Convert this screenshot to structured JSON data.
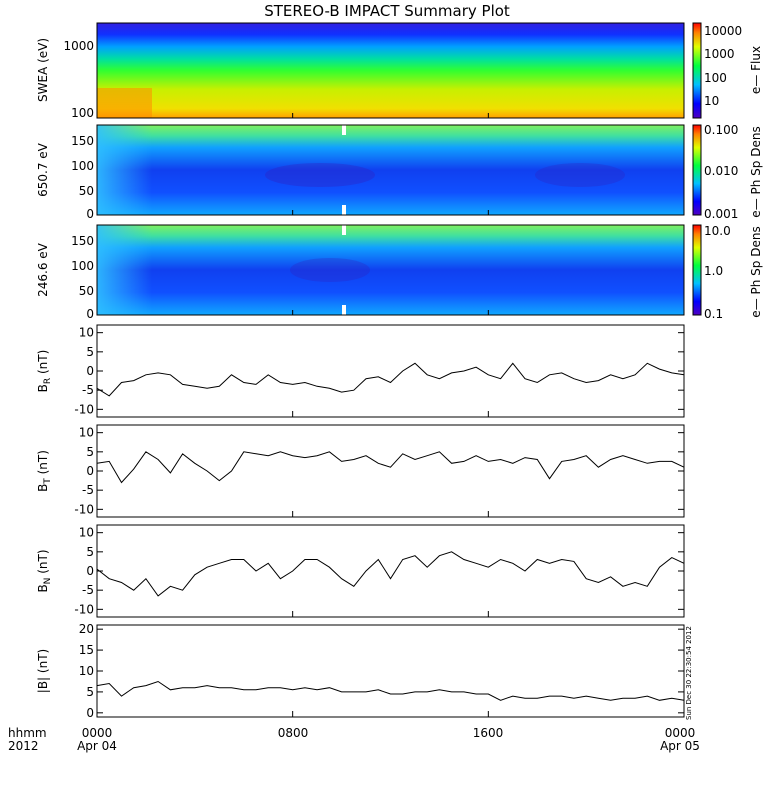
{
  "chart_data": {
    "title": "STEREO-B IMPACT Summary Plot",
    "x_axis": {
      "corner_labels": [
        "hhmm",
        "2012"
      ],
      "ticks": [
        {
          "label": "0000",
          "sub": "Apr 04",
          "hour": 0
        },
        {
          "label": "0800",
          "sub": "",
          "hour": 8
        },
        {
          "label": "1600",
          "sub": "",
          "hour": 16
        },
        {
          "label": "0000",
          "sub": "Apr 05",
          "hour": 24
        }
      ],
      "range_hours": [
        0,
        24
      ]
    },
    "stamp": "Sun Dec 30 22:30:54 2012",
    "panels": [
      {
        "id": "swea",
        "type": "heatmap",
        "ylabel": "SWEA (eV)",
        "scale": "log",
        "yticks": [
          "1000",
          "100"
        ],
        "colorbar_label": "e— Flux",
        "colorbar_ticks": [
          "10000",
          "1000",
          "100",
          "10"
        ],
        "color_stops": [
          "#ff8c00",
          "#e6e600",
          "#00e600",
          "#00c8ff",
          "#0000ff",
          "#6a00c8"
        ]
      },
      {
        "id": "pad650",
        "type": "heatmap",
        "ylabel": "650.7 eV",
        "yticks": [
          "150",
          "100",
          "50",
          "0"
        ],
        "ylim": [
          0,
          180
        ],
        "colorbar_label": "e— Ph Sp Dens",
        "colorbar_ticks": [
          "0.100",
          "0.010",
          "0.001"
        ]
      },
      {
        "id": "pad246",
        "type": "heatmap",
        "ylabel": "246.6 eV",
        "yticks": [
          "150",
          "100",
          "50",
          "0"
        ],
        "ylim": [
          0,
          180
        ],
        "colorbar_label": "e— Ph Sp Dens",
        "colorbar_ticks": [
          "10.0",
          "1.0",
          "0.1"
        ]
      },
      {
        "id": "br",
        "type": "line",
        "ylabel": "B",
        "ylabel_sub": "R",
        "ylabel_unit": " (nT)",
        "ylim": [
          -12,
          12
        ],
        "yticks": [
          "10",
          "5",
          "0",
          "-5",
          "-10"
        ],
        "x": [
          0,
          0.5,
          1,
          1.5,
          2,
          2.5,
          3,
          3.5,
          4,
          4.5,
          5,
          5.5,
          6,
          6.5,
          7,
          7.5,
          8,
          8.5,
          9,
          9.5,
          10,
          10.5,
          11,
          11.5,
          12,
          12.5,
          13,
          13.5,
          14,
          14.5,
          15,
          15.5,
          16,
          16.5,
          17,
          17.5,
          18,
          18.5,
          19,
          19.5,
          20,
          20.5,
          21,
          21.5,
          22,
          22.5,
          23,
          23.5,
          24
        ],
        "values": [
          -4.5,
          -6.5,
          -3,
          -2.5,
          -1,
          -0.5,
          -1,
          -3.5,
          -4,
          -4.5,
          -4,
          -1,
          -3,
          -3.5,
          -1,
          -3,
          -3.5,
          -3,
          -4,
          -4.5,
          -5.5,
          -5,
          -2,
          -1.5,
          -3,
          0,
          2,
          -1,
          -2,
          -0.5,
          0,
          1,
          -1,
          -2,
          2,
          -2,
          -3,
          -1,
          -0.5,
          -2,
          -3,
          -2.5,
          -1,
          -2,
          -1,
          2,
          0.5,
          -0.5,
          -1
        ]
      },
      {
        "id": "bt",
        "type": "line",
        "ylabel": "B",
        "ylabel_sub": "T",
        "ylabel_unit": " (nT)",
        "ylim": [
          -12,
          12
        ],
        "yticks": [
          "10",
          "5",
          "0",
          "-5",
          "-10"
        ],
        "x": [
          0,
          0.5,
          1,
          1.5,
          2,
          2.5,
          3,
          3.5,
          4,
          4.5,
          5,
          5.5,
          6,
          6.5,
          7,
          7.5,
          8,
          8.5,
          9,
          9.5,
          10,
          10.5,
          11,
          11.5,
          12,
          12.5,
          13,
          13.5,
          14,
          14.5,
          15,
          15.5,
          16,
          16.5,
          17,
          17.5,
          18,
          18.5,
          19,
          19.5,
          20,
          20.5,
          21,
          21.5,
          22,
          22.5,
          23,
          23.5,
          24
        ],
        "values": [
          2,
          2.5,
          -3,
          0.5,
          5,
          3,
          -0.5,
          4.5,
          2,
          0,
          -2.5,
          0,
          5,
          4.5,
          4,
          5,
          4,
          3.5,
          4,
          5,
          2.5,
          3,
          4,
          2,
          1,
          4.5,
          3,
          4,
          5,
          2,
          2.5,
          4,
          2.5,
          3,
          2,
          3.5,
          3,
          -2,
          2.5,
          3,
          4,
          1,
          3,
          4,
          3,
          2,
          2.5,
          2.5,
          1
        ]
      },
      {
        "id": "bn",
        "type": "line",
        "ylabel": "B",
        "ylabel_sub": "N",
        "ylabel_unit": " (nT)",
        "ylim": [
          -12,
          12
        ],
        "yticks": [
          "10",
          "5",
          "0",
          "-5",
          "-10"
        ],
        "x": [
          0,
          0.5,
          1,
          1.5,
          2,
          2.5,
          3,
          3.5,
          4,
          4.5,
          5,
          5.5,
          6,
          6.5,
          7,
          7.5,
          8,
          8.5,
          9,
          9.5,
          10,
          10.5,
          11,
          11.5,
          12,
          12.5,
          13,
          13.5,
          14,
          14.5,
          15,
          15.5,
          16,
          16.5,
          17,
          17.5,
          18,
          18.5,
          19,
          19.5,
          20,
          20.5,
          21,
          21.5,
          22,
          22.5,
          23,
          23.5,
          24
        ],
        "values": [
          0.5,
          -2,
          -3,
          -5,
          -2,
          -6.5,
          -4,
          -5,
          -1,
          1,
          2,
          3,
          3,
          0,
          2,
          -2,
          0,
          3,
          3,
          1,
          -2,
          -4,
          0,
          3,
          -2,
          3,
          4,
          1,
          4,
          5,
          3,
          2,
          1,
          3,
          2,
          0,
          3,
          2,
          3,
          2.5,
          -2,
          -3,
          -1.5,
          -4,
          -3,
          -4,
          1,
          3.5,
          2
        ]
      },
      {
        "id": "bmag",
        "type": "line",
        "ylabel": "|B| (nT)",
        "ylim": [
          -1,
          21
        ],
        "yticks": [
          "20",
          "15",
          "10",
          "5",
          "0"
        ],
        "x": [
          0,
          0.5,
          1,
          1.5,
          2,
          2.5,
          3,
          3.5,
          4,
          4.5,
          5,
          5.5,
          6,
          6.5,
          7,
          7.5,
          8,
          8.5,
          9,
          9.5,
          10,
          10.5,
          11,
          11.5,
          12,
          12.5,
          13,
          13.5,
          14,
          14.5,
          15,
          15.5,
          16,
          16.5,
          17,
          17.5,
          18,
          18.5,
          19,
          19.5,
          20,
          20.5,
          21,
          21.5,
          22,
          22.5,
          23,
          23.5,
          24
        ],
        "values": [
          6.5,
          7,
          4,
          6,
          6.5,
          7.5,
          5.5,
          6,
          6,
          6.5,
          6,
          6,
          5.5,
          5.5,
          6,
          6,
          5.5,
          6,
          5.5,
          6,
          5,
          5,
          5,
          5.5,
          4.5,
          4.5,
          5,
          5,
          5.5,
          5,
          5,
          4.5,
          4.5,
          3,
          4,
          3.5,
          3.5,
          4,
          4,
          3.5,
          4,
          3.5,
          3,
          3.5,
          3.5,
          4,
          3,
          3.5,
          3
        ]
      }
    ]
  }
}
